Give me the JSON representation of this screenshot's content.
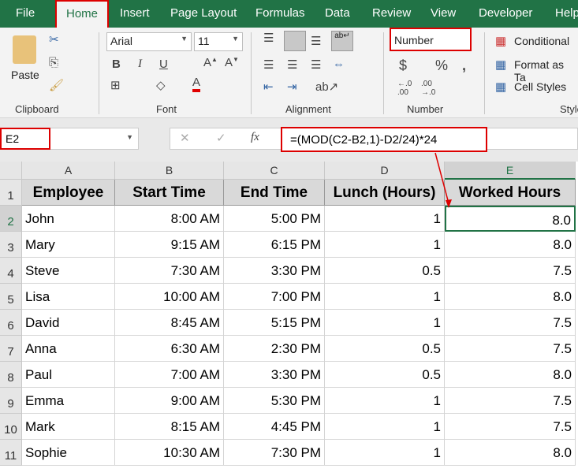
{
  "tabs": [
    "File",
    "Home",
    "Insert",
    "Page Layout",
    "Formulas",
    "Data",
    "Review",
    "View",
    "Developer",
    "Help"
  ],
  "active_tab": "Home",
  "ribbon": {
    "clipboard": {
      "paste": "Paste",
      "label": "Clipboard"
    },
    "font": {
      "name": "Arial",
      "size": "11",
      "label": "Font",
      "bold": "B",
      "italic": "I",
      "underline": "U",
      "font_color": "#e00000"
    },
    "alignment": {
      "label": "Alignment"
    },
    "number": {
      "format": "Number",
      "label": "Number",
      "currency": "$",
      "percent": "%",
      "comma": ","
    },
    "styles": {
      "conditional": "Conditional",
      "format_as_table": "Format as Ta",
      "cell_styles": "Cell Styles",
      "label": "Style"
    }
  },
  "formula_bar": {
    "name_box": "E2",
    "formula": "=(MOD(C2-B2,1)-D2/24)*24",
    "fx": "fx"
  },
  "columns": [
    "A",
    "B",
    "C",
    "D",
    "E"
  ],
  "selected_cell": "E2",
  "headers": [
    "Employee",
    "Start Time",
    "End Time",
    "Lunch (Hours)",
    "Worked Hours"
  ],
  "rows": [
    [
      "John",
      "8:00 AM",
      "5:00 PM",
      "1",
      "8.0"
    ],
    [
      "Mary",
      "9:15 AM",
      "6:15 PM",
      "1",
      "8.0"
    ],
    [
      "Steve",
      "7:30 AM",
      "3:30 PM",
      "0.5",
      "7.5"
    ],
    [
      "Lisa",
      "10:00 AM",
      "7:00 PM",
      "1",
      "8.0"
    ],
    [
      "David",
      "8:45 AM",
      "5:15 PM",
      "1",
      "7.5"
    ],
    [
      "Anna",
      "6:30 AM",
      "2:30 PM",
      "0.5",
      "7.5"
    ],
    [
      "Paul",
      "7:00 AM",
      "3:30 PM",
      "0.5",
      "8.0"
    ],
    [
      "Emma",
      "9:00 AM",
      "5:30 PM",
      "1",
      "7.5"
    ],
    [
      "Mark",
      "8:15 AM",
      "4:45 PM",
      "1",
      "7.5"
    ],
    [
      "Sophie",
      "10:30 AM",
      "7:30 PM",
      "1",
      "8.0"
    ]
  ],
  "row_numbers": [
    "1",
    "2",
    "3",
    "4",
    "5",
    "6",
    "7",
    "8",
    "9",
    "10",
    "11"
  ],
  "accent": "#217346",
  "highlight": "#d00000"
}
